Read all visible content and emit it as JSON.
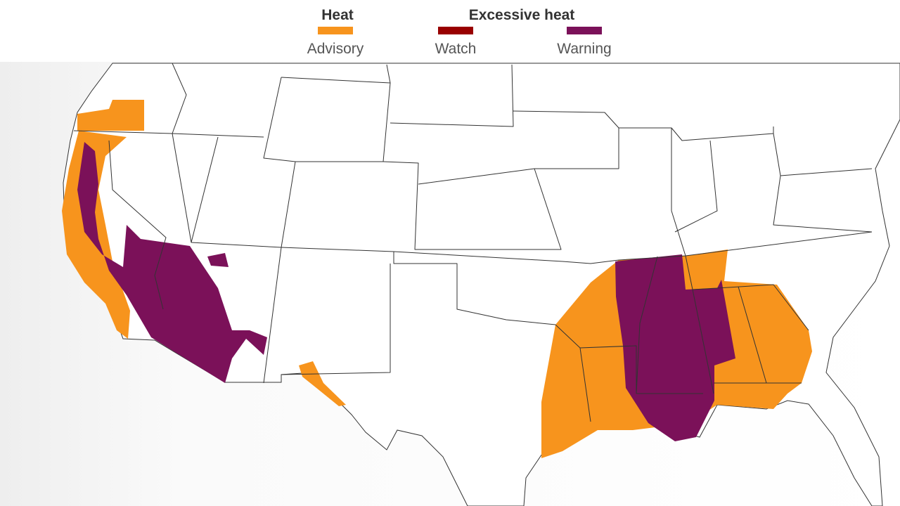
{
  "legend": {
    "groups": [
      {
        "title": "Heat",
        "items": [
          {
            "label": "Advisory",
            "color": "#f7941d"
          }
        ]
      },
      {
        "title": "Excessive heat",
        "items": [
          {
            "label": "Watch",
            "color": "#990000"
          },
          {
            "label": "Warning",
            "color": "#7b1159"
          }
        ]
      }
    ]
  }
}
